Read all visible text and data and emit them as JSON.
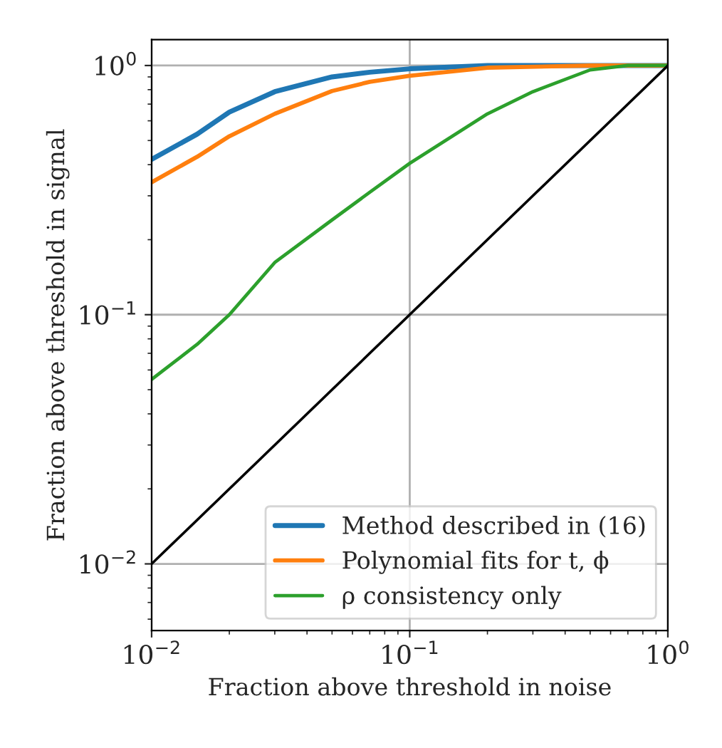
{
  "chart_data": {
    "type": "line",
    "xlabel": "Fraction above threshold in noise",
    "ylabel": "Fraction above threshold in signal",
    "log": "xy",
    "grid": true,
    "legend": "bottom right",
    "line_style": "solid",
    "marker": "none",
    "xlim": [
      0.01,
      1
    ],
    "ylim": [
      0.0054,
      1.27
    ],
    "xticks": [
      {
        "value": 0.01,
        "label": "10$^{−2}$"
      },
      {
        "value": 0.1,
        "label": "10$^{−1}$"
      },
      {
        "value": 1,
        "label": "10$^{0}$"
      }
    ],
    "yticks": [
      {
        "value": 0.01,
        "label": "10$^{−2}$"
      },
      {
        "value": 0.1,
        "label": "10$^{−1}$"
      },
      {
        "value": 1,
        "label": "10$^{0}$"
      }
    ],
    "series": [
      {
        "name": "Method described in (16)",
        "color": "#1f77b4",
        "x": [
          0.01,
          0.015,
          0.02,
          0.03,
          0.05,
          0.07,
          0.1,
          0.2,
          0.5,
          1
        ],
        "values": [
          0.42,
          0.53,
          0.65,
          0.785,
          0.9,
          0.94,
          0.97,
          1.0,
          1.0,
          1.0
        ]
      },
      {
        "name": "Polynomial fits for t, ϕ",
        "color": "#ff7f0e",
        "x": [
          0.01,
          0.015,
          0.02,
          0.03,
          0.05,
          0.07,
          0.1,
          0.2,
          0.5,
          1
        ],
        "values": [
          0.34,
          0.43,
          0.52,
          0.64,
          0.79,
          0.86,
          0.91,
          0.98,
          1.0,
          1.0
        ]
      },
      {
        "name": "ρ consistency only",
        "color": "#2ca02c",
        "x": [
          0.01,
          0.015,
          0.02,
          0.03,
          0.05,
          0.07,
          0.1,
          0.2,
          0.3,
          0.5,
          0.7,
          1
        ],
        "values": [
          0.055,
          0.076,
          0.1,
          0.162,
          0.24,
          0.31,
          0.405,
          0.64,
          0.785,
          0.96,
          1.0,
          1.0
        ]
      },
      {
        "color": "#000000",
        "x": [
          0.01,
          1
        ],
        "values": [
          0.01,
          1
        ]
      }
    ]
  }
}
